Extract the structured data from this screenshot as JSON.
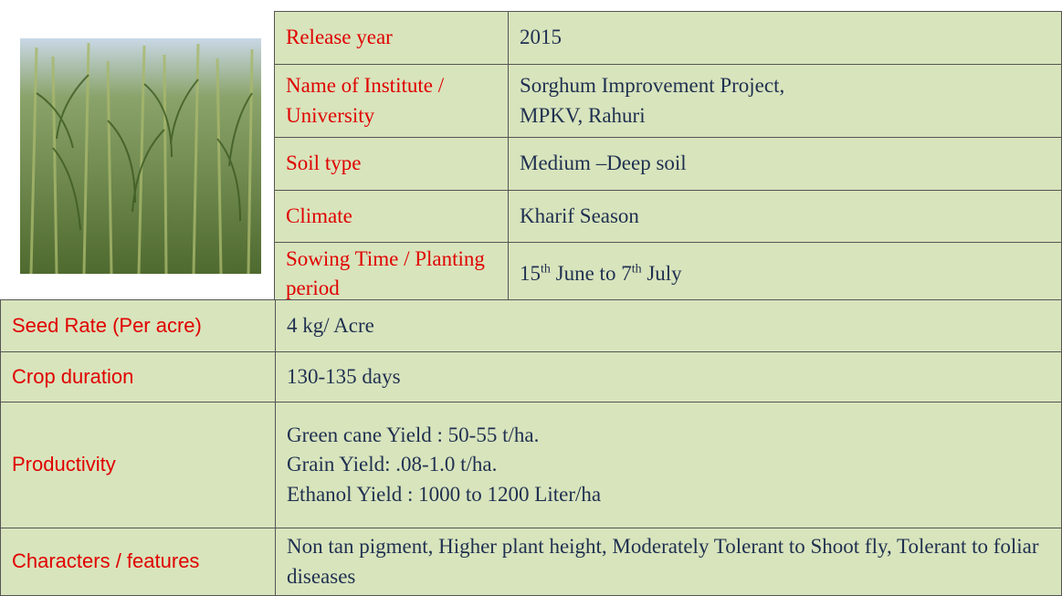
{
  "top_table": {
    "rows": [
      {
        "label": "Release year",
        "value": [
          "2015"
        ]
      },
      {
        "label": "Name of Institute / University",
        "value": [
          "Sorghum Improvement Project,",
          "MPKV, Rahuri"
        ]
      },
      {
        "label": "Soil type",
        "value": [
          "Medium –Deep soil"
        ]
      },
      {
        "label": "Climate",
        "value": [
          "Kharif  Season"
        ]
      },
      {
        "label": "Sowing Time /  Planting  period",
        "value": [
          "15",
          "th",
          " June to 7",
          "th",
          " July"
        ]
      }
    ]
  },
  "bottom_table": {
    "rows": [
      {
        "label": "Seed Rate (Per acre)",
        "value": [
          "4 kg/ Acre"
        ]
      },
      {
        "label": "Crop duration",
        "value": [
          "130-135 days"
        ]
      },
      {
        "label": "Productivity",
        "value": [
          "Green cane Yield : 50-55 t/ha.",
          "Grain Yield: .08-1.0 t/ha.",
          "Ethanol  Yield  : 1000 to 1200 Liter/ha"
        ]
      },
      {
        "label": "Characters / features",
        "value": [
          "Non tan pigment, Higher plant height, Moderately Tolerant to Shoot fly, Tolerant to foliar diseases"
        ]
      }
    ]
  }
}
